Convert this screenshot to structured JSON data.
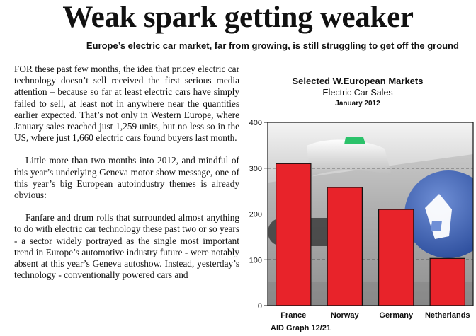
{
  "article": {
    "headline": "Weak spark getting weaker",
    "subheadline": "Europe’s electric car market, far from growing, is still struggling to get off the ground",
    "paragraphs": [
      "FOR these past few months, the idea that pricey electric car technology doesn’t sell received the first serious media attention – because so far at least electric cars have simply failed to sell, at least not in anywhere near the quantities earlier expected.  That’s not only in Western Europe, where January sales reached just 1,259 units, but no less so in the US, where just 1,660 electric cars found buyers last month.",
      "Little more than two months into 2012, and mindful of this year’s underlying Geneva motor show message, one of this year’s big European autoindustry themes is already obvious:",
      "Fanfare and drum rolls that surrounded almost anything to do with electric car technology these past two or so years - a sector widely portrayed as the single most important trend in Europe’s automotive industry future - were notably absent at this year’s Geneva autoshow.  Instead, yesterday’s technology - conventionally powered cars and"
    ]
  },
  "chart_data": {
    "type": "bar",
    "title": "Selected W.European Markets",
    "subtitle": "Electric Car Sales",
    "date_label": "January 2012",
    "categories": [
      "France",
      "Norway",
      "Germany",
      "Netherlands"
    ],
    "values": [
      310,
      258,
      210,
      103
    ],
    "ylim": [
      0,
      400
    ],
    "yticks": [
      "0",
      "100",
      "200",
      "300",
      "400"
    ],
    "grid": "dashed horizontal",
    "bar_color": "#e8232a",
    "background": "photo of an electric car charging plug",
    "source_note": "AID Graph 12/21"
  }
}
